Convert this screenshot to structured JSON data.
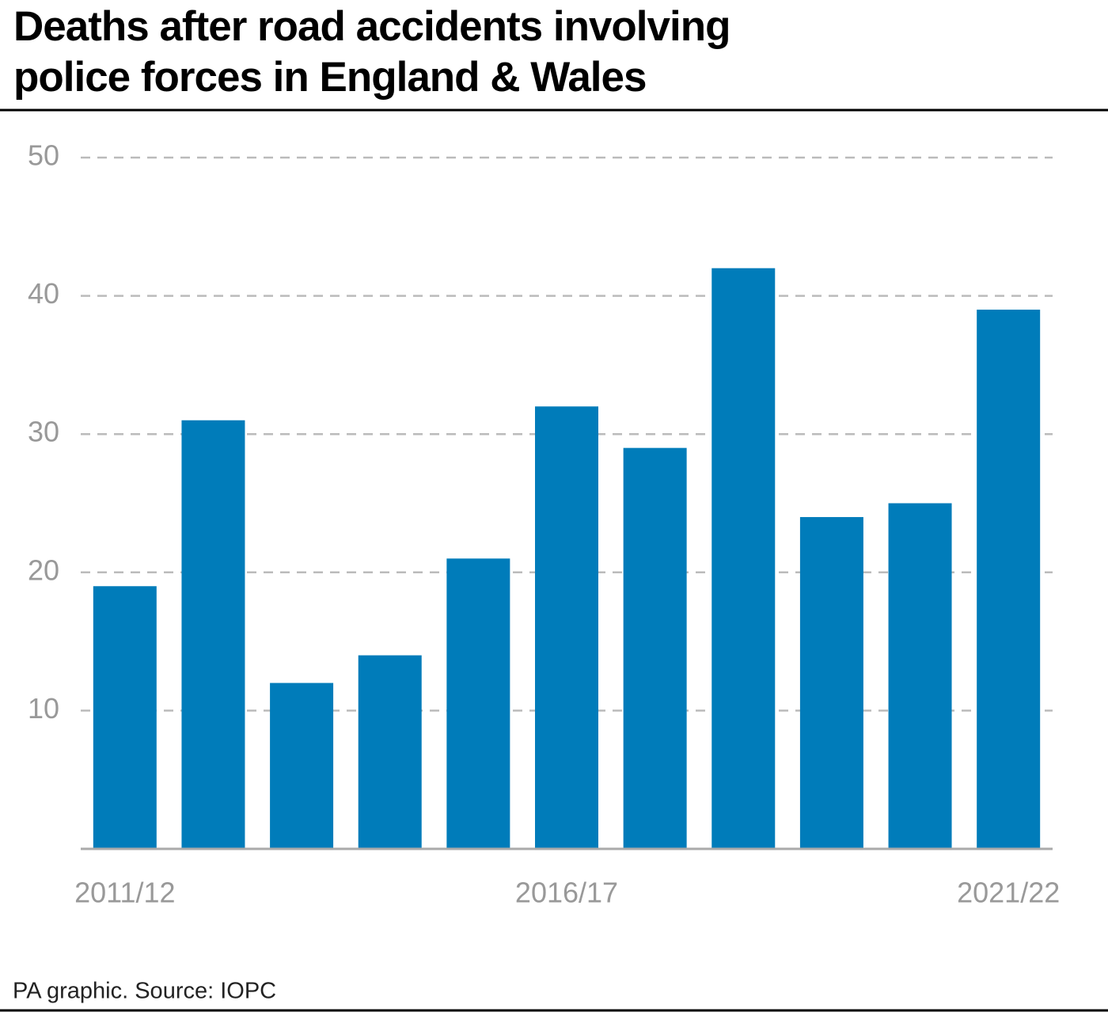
{
  "chart_data": {
    "type": "bar",
    "title": "Deaths after road accidents involving police forces in England & Wales",
    "source": "PA graphic. Source: IOPC",
    "categories": [
      "2011/12",
      null,
      null,
      null,
      null,
      "2016/17",
      null,
      null,
      null,
      null,
      "2021/22"
    ],
    "values": [
      19,
      31,
      12,
      14,
      21,
      32,
      29,
      42,
      24,
      25,
      39
    ],
    "color": "#007cba",
    "ylim": [
      0,
      50
    ],
    "yticks": [
      10,
      20,
      30,
      40,
      50
    ],
    "grid": true
  }
}
